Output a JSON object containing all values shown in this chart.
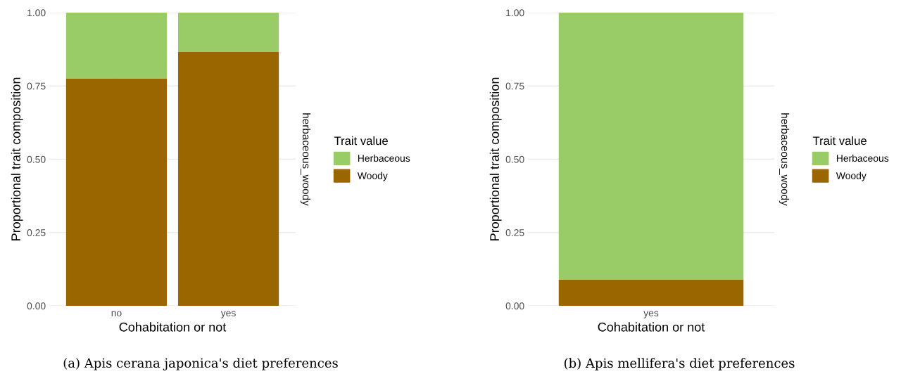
{
  "chart_data": [
    {
      "type": "bar",
      "stacked": true,
      "categories": [
        "no",
        "yes"
      ],
      "xlabel": "Cohabitation or not",
      "ylabel": "Proportional trait composition",
      "legend_title": "Trait value",
      "legend": "right",
      "grid": true,
      "ylim": [
        0,
        1
      ],
      "yticks": [
        {
          "value": 0,
          "label": "0.00"
        },
        {
          "value": 0.25,
          "label": "0.25"
        },
        {
          "value": 0.5,
          "label": "0.50"
        },
        {
          "value": 0.75,
          "label": "0.75"
        },
        {
          "value": 1,
          "label": "1.00"
        }
      ],
      "series": [
        {
          "name": "Woody",
          "color": "#996600",
          "values": [
            0.776,
            0.866
          ]
        },
        {
          "name": "Herbaceous",
          "color": "#99cc66",
          "values": [
            0.224,
            0.134
          ]
        }
      ],
      "annotations": [
        "herbaceous_woody",
        "(a) Apis cerana japonica's diet preferences"
      ]
    },
    {
      "type": "bar",
      "stacked": true,
      "categories": [
        "yes"
      ],
      "xlabel": "Cohabitation or not",
      "ylabel": "Proportional trait composition",
      "legend_title": "Trait value",
      "legend": "right",
      "grid": true,
      "ylim": [
        0,
        1
      ],
      "yticks": [
        {
          "value": 0,
          "label": "0.00"
        },
        {
          "value": 0.25,
          "label": "0.25"
        },
        {
          "value": 0.5,
          "label": "0.50"
        },
        {
          "value": 0.75,
          "label": "0.75"
        },
        {
          "value": 1,
          "label": "1.00"
        }
      ],
      "series": [
        {
          "name": "Woody",
          "color": "#996600",
          "values": [
            0.09
          ]
        },
        {
          "name": "Herbaceous",
          "color": "#99cc66",
          "values": [
            0.91
          ]
        }
      ],
      "annotations": [
        "herbaceous_woody",
        "(b) Apis mellifera's diet preferences"
      ]
    }
  ]
}
